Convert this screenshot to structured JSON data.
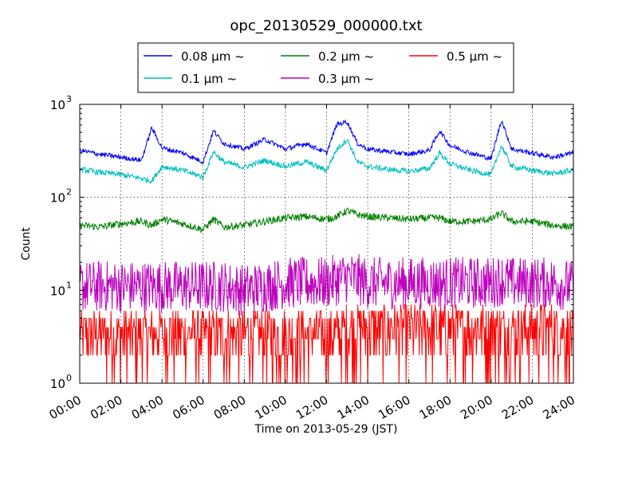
{
  "chart_data": {
    "type": "line",
    "title": "opc_20130529_000000.txt",
    "xlabel": "Time on 2013-05-29 (JST)",
    "ylabel": "Count",
    "yscale": "log",
    "ylim": [
      1,
      1000
    ],
    "xlim": [
      "00:00",
      "24:00"
    ],
    "x_tick_labels": [
      "00:00",
      "02:00",
      "04:00",
      "06:00",
      "08:00",
      "10:00",
      "12:00",
      "14:00",
      "16:00",
      "18:00",
      "20:00",
      "22:00",
      "24:00"
    ],
    "y_tick_labels": [
      {
        "base": "10",
        "exp": "0"
      },
      {
        "base": "10",
        "exp": "1"
      },
      {
        "base": "10",
        "exp": "2"
      },
      {
        "base": "10",
        "exp": "3"
      }
    ],
    "grid": true,
    "legend_position": "top-center",
    "x_hours": [
      0,
      1,
      2,
      3,
      3.5,
      4,
      5,
      6,
      6.5,
      7,
      8,
      9,
      10,
      11,
      12,
      12.5,
      13,
      13.5,
      14,
      15,
      16,
      17,
      17.5,
      18,
      19,
      20,
      20.5,
      21,
      22,
      23,
      24
    ],
    "series": [
      {
        "name": "0.08 μm ~",
        "color": "#0000ff",
        "values": [
          320,
          290,
          270,
          250,
          560,
          340,
          300,
          240,
          520,
          380,
          330,
          420,
          330,
          380,
          300,
          610,
          650,
          380,
          330,
          310,
          290,
          320,
          520,
          360,
          300,
          260,
          680,
          330,
          300,
          270,
          300
        ]
      },
      {
        "name": "0.1 μm ~",
        "color": "#00bfbf",
        "values": [
          200,
          185,
          175,
          160,
          150,
          215,
          195,
          165,
          310,
          240,
          210,
          250,
          215,
          240,
          195,
          330,
          420,
          240,
          215,
          200,
          190,
          205,
          300,
          230,
          195,
          175,
          360,
          215,
          195,
          180,
          195
        ]
      },
      {
        "name": "0.2 μm ~",
        "color": "#008000",
        "values": [
          50,
          48,
          52,
          55,
          50,
          58,
          52,
          45,
          58,
          48,
          50,
          55,
          60,
          62,
          58,
          62,
          72,
          65,
          62,
          60,
          58,
          60,
          60,
          55,
          55,
          58,
          68,
          55,
          55,
          50,
          48
        ]
      },
      {
        "name": "0.3 μm ~",
        "color": "#bf00bf",
        "values": [
          11,
          11,
          11,
          11,
          11,
          11,
          11,
          11,
          11,
          11,
          10,
          11,
          12,
          12,
          12,
          13,
          14,
          13,
          12,
          12,
          12,
          12,
          12,
          12,
          12,
          12,
          13,
          12,
          12,
          12,
          11
        ]
      },
      {
        "name": "0.5 μm ~",
        "color": "#ff0000",
        "values": [
          2.5,
          2.5,
          2.5,
          2.5,
          2.5,
          2.5,
          2.5,
          2.5,
          2.5,
          2.5,
          2.5,
          2.5,
          2.5,
          2.5,
          2.5,
          2.5,
          3,
          3,
          3,
          3,
          3,
          3,
          3,
          3,
          3,
          3,
          3,
          3,
          3,
          3,
          2.5
        ]
      }
    ]
  }
}
